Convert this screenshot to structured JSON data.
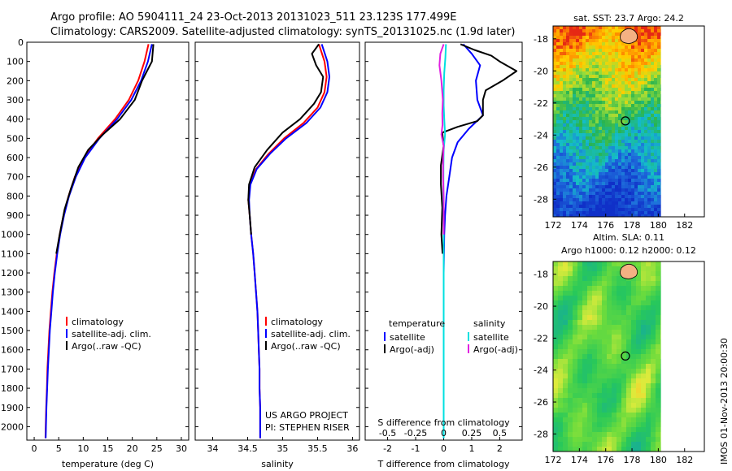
{
  "header": {
    "line1": "Argo profile: AO 5904111_24 23-Oct-2013 20131023_511 23.123S 177.499E",
    "line2": "Climatology: CARS2009. Satellite-adjusted climatology: synTS_20131025.nc (1.9d later)"
  },
  "side_stamp": "IMOS 01-Nov-2013 20:00:30",
  "credit": {
    "line1": "US ARGO PROJECT",
    "line2": "PI: STEPHEN RISER"
  },
  "colors": {
    "climatology": "#ff0000",
    "satellite": "#0000ff",
    "argo": "#000000",
    "s_satellite": "#00e0e0",
    "s_argo": "#e020e0"
  },
  "chart_data": [
    {
      "type": "line",
      "name": "temperature-profile",
      "xlabel": "temperature (deg C)",
      "xticks": [
        0,
        5,
        10,
        15,
        20,
        25,
        30
      ],
      "xlim": [
        -1.5,
        31.5
      ],
      "ylim": [
        2070,
        0
      ],
      "yticks": [
        0,
        100,
        200,
        300,
        400,
        500,
        600,
        700,
        800,
        900,
        1000,
        1100,
        1200,
        1300,
        1400,
        1500,
        1600,
        1700,
        1800,
        1900,
        2000
      ],
      "legend": [
        "climatology",
        "satellite-adj. clim.",
        "Argo(..raw -QC)"
      ],
      "series": [
        {
          "name": "climatology",
          "points": [
            [
              23.3,
              10
            ],
            [
              22.5,
              100
            ],
            [
              21.2,
              200
            ],
            [
              19.3,
              300
            ],
            [
              16.5,
              400
            ],
            [
              13.0,
              500
            ],
            [
              10.2,
              600
            ],
            [
              8.3,
              700
            ],
            [
              7.0,
              800
            ],
            [
              6.0,
              900
            ],
            [
              5.2,
              1000
            ],
            [
              4.6,
              1100
            ],
            [
              4.1,
              1200
            ],
            [
              3.7,
              1300
            ],
            [
              3.4,
              1400
            ],
            [
              3.1,
              1500
            ],
            [
              2.9,
              1600
            ],
            [
              2.7,
              1700
            ],
            [
              2.6,
              1800
            ],
            [
              2.45,
              1900
            ],
            [
              2.35,
              2000
            ],
            [
              2.3,
              2060
            ]
          ]
        },
        {
          "name": "satellite-adj. clim.",
          "points": [
            [
              24.0,
              10
            ],
            [
              23.2,
              100
            ],
            [
              21.8,
              200
            ],
            [
              19.8,
              300
            ],
            [
              16.9,
              400
            ],
            [
              13.3,
              500
            ],
            [
              10.4,
              600
            ],
            [
              8.5,
              700
            ],
            [
              7.1,
              800
            ],
            [
              6.1,
              900
            ],
            [
              5.3,
              1000
            ],
            [
              4.7,
              1100
            ],
            [
              4.2,
              1200
            ],
            [
              3.8,
              1300
            ],
            [
              3.5,
              1400
            ],
            [
              3.2,
              1500
            ],
            [
              3.0,
              1600
            ],
            [
              2.8,
              1700
            ],
            [
              2.65,
              1800
            ],
            [
              2.5,
              1900
            ],
            [
              2.4,
              2000
            ],
            [
              2.35,
              2060
            ]
          ]
        },
        {
          "name": "Argo(..raw -QC)",
          "points": [
            [
              24.3,
              10
            ],
            [
              24.0,
              100
            ],
            [
              23.0,
              150
            ],
            [
              22.0,
              200
            ],
            [
              20.5,
              300
            ],
            [
              17.5,
              400
            ],
            [
              14.0,
              480
            ],
            [
              11.0,
              560
            ],
            [
              9.0,
              650
            ],
            [
              7.5,
              760
            ],
            [
              6.2,
              870
            ],
            [
              5.2,
              1000
            ],
            [
              4.5,
              1100
            ]
          ]
        }
      ]
    },
    {
      "type": "line",
      "name": "salinity-profile",
      "xlabel": "salinity",
      "xticks": [
        34,
        34.5,
        35,
        35.5,
        36
      ],
      "xlim": [
        33.75,
        36.1
      ],
      "ylim": [
        2070,
        0
      ],
      "legend": [
        "climatology",
        "satellite-adj. clim.",
        "Argo(..raw -QC)"
      ],
      "series": [
        {
          "name": "climatology",
          "points": [
            [
              35.52,
              10
            ],
            [
              35.6,
              100
            ],
            [
              35.63,
              180
            ],
            [
              35.6,
              260
            ],
            [
              35.5,
              340
            ],
            [
              35.3,
              420
            ],
            [
              35.02,
              500
            ],
            [
              34.8,
              580
            ],
            [
              34.62,
              660
            ],
            [
              34.53,
              740
            ],
            [
              34.51,
              820
            ],
            [
              34.53,
              900
            ],
            [
              34.55,
              1000
            ],
            [
              34.58,
              1100
            ],
            [
              34.6,
              1200
            ],
            [
              34.62,
              1300
            ],
            [
              34.64,
              1400
            ],
            [
              34.65,
              1500
            ],
            [
              34.66,
              1600
            ],
            [
              34.67,
              1700
            ],
            [
              34.67,
              1800
            ],
            [
              34.68,
              1900
            ],
            [
              34.68,
              2000
            ],
            [
              34.68,
              2060
            ]
          ]
        },
        {
          "name": "satellite-adj. clim.",
          "points": [
            [
              35.56,
              10
            ],
            [
              35.64,
              100
            ],
            [
              35.67,
              180
            ],
            [
              35.64,
              260
            ],
            [
              35.54,
              340
            ],
            [
              35.34,
              420
            ],
            [
              35.05,
              500
            ],
            [
              34.82,
              580
            ],
            [
              34.63,
              660
            ],
            [
              34.54,
              740
            ],
            [
              34.52,
              820
            ],
            [
              34.53,
              900
            ],
            [
              34.55,
              1000
            ],
            [
              34.58,
              1100
            ],
            [
              34.6,
              1200
            ],
            [
              34.62,
              1300
            ],
            [
              34.64,
              1400
            ],
            [
              34.65,
              1500
            ],
            [
              34.66,
              1600
            ],
            [
              34.67,
              1700
            ],
            [
              34.67,
              1800
            ],
            [
              34.68,
              1900
            ],
            [
              34.68,
              2000
            ],
            [
              34.68,
              2060
            ]
          ]
        },
        {
          "name": "Argo(..raw -QC)",
          "points": [
            [
              35.52,
              10
            ],
            [
              35.42,
              60
            ],
            [
              35.48,
              120
            ],
            [
              35.58,
              180
            ],
            [
              35.55,
              260
            ],
            [
              35.45,
              320
            ],
            [
              35.25,
              400
            ],
            [
              35.0,
              470
            ],
            [
              34.78,
              560
            ],
            [
              34.6,
              650
            ],
            [
              34.52,
              740
            ],
            [
              34.51,
              820
            ],
            [
              34.53,
              900
            ],
            [
              34.55,
              1000
            ]
          ]
        }
      ]
    },
    {
      "type": "line",
      "name": "difference-profile",
      "xlabel": "T difference from climatology",
      "xlabel_top": "S difference from climatology",
      "xticks": [
        -2,
        -1,
        0,
        1,
        2
      ],
      "xticks_top": [
        -0.5,
        -0.25,
        0,
        0.25,
        0.5
      ],
      "xlim": [
        -2.8,
        2.8
      ],
      "ylim": [
        2070,
        0
      ],
      "legend_titles": [
        "temperature",
        "salinity"
      ],
      "legend": [
        "satellite",
        "Argo(-adj)",
        "satellite",
        "Argo(-adj)"
      ],
      "series": [
        {
          "name": "T satellite",
          "points": [
            [
              0.7,
              10
            ],
            [
              1.0,
              60
            ],
            [
              1.3,
              120
            ],
            [
              1.15,
              200
            ],
            [
              1.2,
              300
            ],
            [
              1.4,
              380
            ],
            [
              0.9,
              450
            ],
            [
              0.5,
              520
            ],
            [
              0.3,
              600
            ],
            [
              0.2,
              700
            ],
            [
              0.1,
              800
            ],
            [
              0.05,
              900
            ],
            [
              0.02,
              1000
            ],
            [
              0.0,
              1200
            ],
            [
              0.0,
              1500
            ],
            [
              0.0,
              2060
            ]
          ]
        },
        {
          "name": "T Argo(-adj)",
          "points": [
            [
              0.6,
              10
            ],
            [
              1.1,
              40
            ],
            [
              1.7,
              70
            ],
            [
              2.0,
              100
            ],
            [
              2.6,
              150
            ],
            [
              2.1,
              200
            ],
            [
              1.5,
              250
            ],
            [
              1.4,
              300
            ],
            [
              1.4,
              380
            ],
            [
              1.2,
              410
            ],
            [
              0.5,
              440
            ],
            [
              -0.05,
              470
            ],
            [
              0.0,
              540
            ],
            [
              -0.1,
              640
            ],
            [
              -0.1,
              740
            ],
            [
              -0.05,
              860
            ],
            [
              -0.08,
              1000
            ],
            [
              -0.04,
              1100
            ]
          ]
        },
        {
          "name": "S satellite",
          "points": [
            [
              0.08,
              10
            ],
            [
              0.06,
              80
            ],
            [
              0.02,
              160
            ],
            [
              0.0,
              250
            ],
            [
              0.0,
              330
            ],
            [
              0.02,
              400
            ],
            [
              0.05,
              480
            ],
            [
              0.0,
              560
            ],
            [
              -0.01,
              650
            ],
            [
              -0.01,
              800
            ],
            [
              0.0,
              1000
            ],
            [
              0.0,
              1500
            ],
            [
              0.0,
              2060
            ]
          ]
        },
        {
          "name": "S Argo(-adj)",
          "points": [
            [
              0.0,
              10
            ],
            [
              -0.12,
              60
            ],
            [
              -0.15,
              120
            ],
            [
              -0.08,
              200
            ],
            [
              -0.03,
              300
            ],
            [
              -0.05,
              370
            ],
            [
              -0.04,
              430
            ],
            [
              -0.08,
              480
            ],
            [
              0.0,
              540
            ],
            [
              -0.02,
              600
            ],
            [
              -0.02,
              700
            ],
            [
              0.0,
              800
            ],
            [
              0.0,
              1000
            ]
          ]
        }
      ]
    },
    {
      "type": "heatmap",
      "name": "sst-map",
      "title": "sat. SST: 23.7  Argo: 24.2",
      "xticks": [
        172,
        174,
        176,
        178,
        180,
        182
      ],
      "yticks": [
        -18,
        -20,
        -22,
        -24,
        -26,
        -28
      ],
      "xlim": [
        172,
        183.5
      ],
      "ylim": [
        -29.1,
        -17.2
      ],
      "argo_position": [
        177.5,
        -23.12
      ]
    },
    {
      "type": "heatmap",
      "name": "sla-map",
      "title": "Altim. SLA: 0.11",
      "subtitle": "Argo h1000: 0.12  h2000: 0.12",
      "xticks": [
        172,
        174,
        176,
        178,
        180,
        182
      ],
      "yticks": [
        -18,
        -20,
        -22,
        -24,
        -26,
        -28
      ],
      "xlim": [
        172,
        183.5
      ],
      "ylim": [
        -29.1,
        -17.2
      ],
      "argo_position": [
        177.5,
        -23.12
      ]
    }
  ]
}
